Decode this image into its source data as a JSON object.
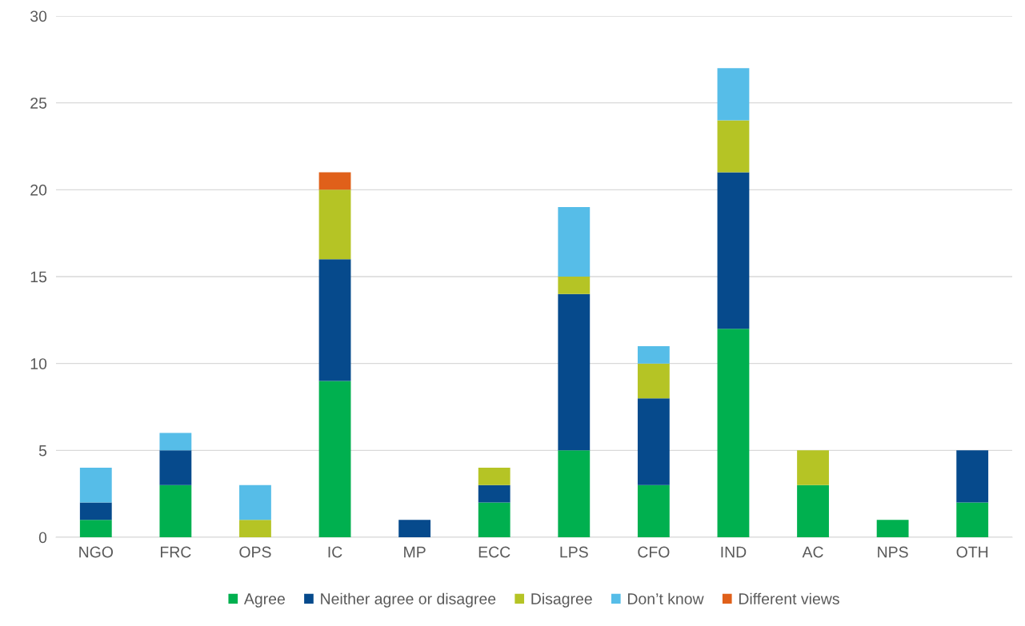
{
  "chart_data": {
    "type": "bar",
    "stacked": true,
    "categories": [
      "NGO",
      "FRC",
      "OPS",
      "IC",
      "MP",
      "ECC",
      "LPS",
      "CFO",
      "IND",
      "AC",
      "NPS",
      "OTH"
    ],
    "series": [
      {
        "name": "Agree",
        "color": "#00b04f",
        "values": [
          1,
          3,
          0,
          9,
          0,
          2,
          5,
          3,
          12,
          3,
          1,
          2
        ]
      },
      {
        "name": "Neither agree or disagree",
        "color": "#064a8c",
        "values": [
          1,
          2,
          0,
          7,
          1,
          1,
          9,
          5,
          9,
          0,
          0,
          3
        ]
      },
      {
        "name": "Disagree",
        "color": "#b5c425",
        "values": [
          0,
          0,
          1,
          4,
          0,
          1,
          1,
          2,
          3,
          2,
          0,
          0
        ]
      },
      {
        "name": "Don’t know",
        "color": "#56bde8",
        "values": [
          2,
          1,
          2,
          0,
          0,
          0,
          4,
          1,
          3,
          0,
          0,
          0
        ]
      },
      {
        "name": "Different views",
        "color": "#e0601a",
        "values": [
          0,
          0,
          0,
          1,
          0,
          0,
          0,
          0,
          0,
          0,
          0,
          0
        ]
      }
    ],
    "ylim": [
      0,
      30
    ],
    "yticks": [
      0,
      5,
      10,
      15,
      20,
      25,
      30
    ],
    "grid": "y",
    "legend": "bottom"
  }
}
